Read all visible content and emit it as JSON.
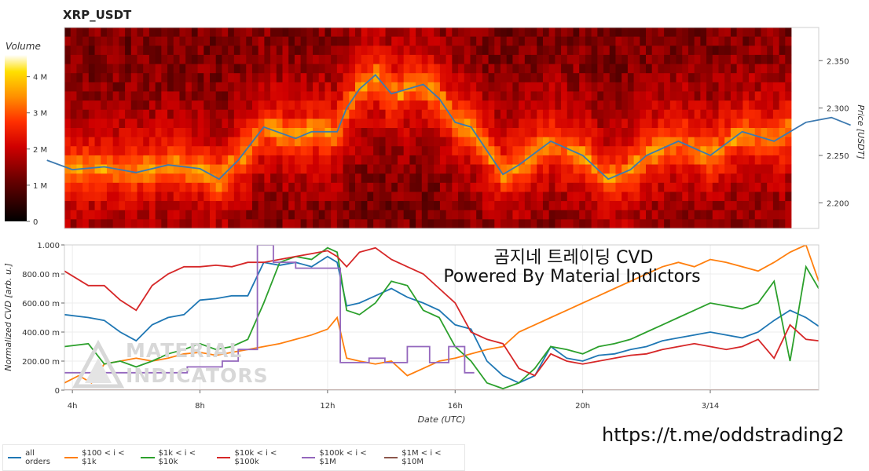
{
  "title": "XRP_USDT",
  "colorbar": {
    "title": "Volume",
    "ticks": [
      "0",
      "1 M",
      "2 M",
      "3 M",
      "4 M"
    ],
    "tick_values": [
      0,
      1,
      2,
      3,
      4
    ],
    "max": 4.6
  },
  "watermark": {
    "line1": "곰지네 트레이딩 CVD",
    "line2": "Powered By Material Indictors",
    "logo_line1": "MATERIAL",
    "logo_line2": "INDICATORS"
  },
  "link": "https://t.me/oddstrading2",
  "colors": {
    "price_line": "#3d7ab0",
    "all_orders": "#1f77b4",
    "s100_1k": "#ff7f0e",
    "s1k_10k": "#2ca02c",
    "s10k_100k": "#d62728",
    "s100k_1m": "#9467bd",
    "s1m_10m": "#8c564b"
  },
  "chart_data": [
    {
      "type": "heatmap",
      "title": "XRP_USDT",
      "ylabel": "Price [USDT]",
      "yticks": [
        "2.200",
        "2.250",
        "2.300",
        "2.350"
      ],
      "ytick_values": [
        2.2,
        2.25,
        2.3,
        2.35
      ],
      "ylim": [
        2.173,
        2.385
      ],
      "zlabel": "Volume",
      "price_series": {
        "name": "Price",
        "x": [
          3.2,
          4.0,
          5.0,
          6.0,
          7.0,
          8.0,
          8.6,
          9.2,
          10.0,
          11.0,
          11.5,
          12.3,
          12.6,
          13.0,
          13.5,
          14.0,
          14.5,
          15.0,
          15.5,
          16.0,
          16.5,
          17.0,
          17.5,
          18.0,
          19.0,
          20.0,
          20.8,
          21.5,
          22.0,
          23.0,
          24.0,
          25.0,
          26.0,
          26.5,
          27.0,
          27.8,
          28.4
        ],
        "y": [
          2.245,
          2.235,
          2.238,
          2.232,
          2.24,
          2.236,
          2.225,
          2.245,
          2.28,
          2.268,
          2.275,
          2.275,
          2.3,
          2.32,
          2.335,
          2.315,
          2.32,
          2.325,
          2.31,
          2.285,
          2.28,
          2.255,
          2.23,
          2.24,
          2.265,
          2.25,
          2.225,
          2.235,
          2.25,
          2.265,
          2.25,
          2.275,
          2.265,
          2.275,
          2.285,
          2.29,
          2.282
        ]
      }
    },
    {
      "type": "line",
      "xlabel": "Date (UTC)",
      "ylabel": "Normalized CVD [arb. u.]",
      "xticks": [
        "4h",
        "8h",
        "12h",
        "16h",
        "20h",
        "3/14"
      ],
      "xtick_values": [
        4,
        8,
        12,
        16,
        20,
        24
      ],
      "xlim": [
        3.75,
        27.4
      ],
      "yticks": [
        "0",
        "200.00 m",
        "400.00 m",
        "600.00 m",
        "800.00 m",
        "1.000"
      ],
      "ytick_values": [
        0,
        0.2,
        0.4,
        0.6,
        0.8,
        1.0
      ],
      "ylim": [
        0,
        1.0
      ],
      "series": [
        {
          "name": "all orders",
          "x": [
            3.75,
            4.5,
            5.0,
            5.5,
            6.0,
            6.5,
            7.0,
            7.5,
            8.0,
            8.5,
            9.0,
            9.5,
            10.0,
            10.5,
            11.0,
            11.5,
            12.0,
            12.3,
            12.6,
            13.0,
            13.5,
            14.0,
            14.5,
            15.0,
            15.5,
            16.0,
            16.5,
            17.0,
            17.5,
            18.0,
            18.5,
            19.0,
            19.5,
            20.0,
            20.5,
            21.0,
            21.5,
            22.0,
            22.5,
            23.0,
            23.5,
            24.0,
            24.5,
            25.0,
            25.5,
            26.0,
            26.5,
            27.0,
            27.4
          ],
          "y": [
            0.52,
            0.5,
            0.48,
            0.4,
            0.34,
            0.45,
            0.5,
            0.52,
            0.62,
            0.63,
            0.65,
            0.65,
            0.88,
            0.86,
            0.88,
            0.85,
            0.92,
            0.88,
            0.58,
            0.6,
            0.65,
            0.7,
            0.64,
            0.6,
            0.55,
            0.45,
            0.42,
            0.2,
            0.1,
            0.05,
            0.1,
            0.3,
            0.22,
            0.2,
            0.24,
            0.25,
            0.28,
            0.3,
            0.34,
            0.36,
            0.38,
            0.4,
            0.38,
            0.36,
            0.4,
            0.48,
            0.55,
            0.5,
            0.44
          ]
        },
        {
          "name": "$100 < i < $1k",
          "x": [
            3.75,
            4.2,
            4.6,
            5.0,
            5.5,
            6.0,
            6.5,
            7.0,
            7.5,
            8.0,
            8.5,
            9.0,
            9.5,
            10.0,
            10.5,
            11.0,
            11.5,
            12.0,
            12.3,
            12.6,
            13.0,
            13.5,
            14.0,
            14.5,
            15.0,
            15.5,
            16.0,
            16.5,
            17.0,
            17.5,
            18.0,
            18.5,
            19.0,
            19.5,
            20.0,
            20.5,
            21.0,
            21.5,
            22.0,
            22.5,
            23.0,
            23.5,
            24.0,
            24.5,
            25.0,
            25.5,
            26.0,
            26.5,
            27.0,
            27.4
          ],
          "y": [
            0.05,
            0.1,
            0.05,
            0.18,
            0.2,
            0.22,
            0.2,
            0.22,
            0.25,
            0.26,
            0.24,
            0.26,
            0.28,
            0.3,
            0.32,
            0.35,
            0.38,
            0.42,
            0.5,
            0.22,
            0.2,
            0.18,
            0.2,
            0.1,
            0.15,
            0.2,
            0.22,
            0.25,
            0.28,
            0.3,
            0.4,
            0.45,
            0.5,
            0.55,
            0.6,
            0.65,
            0.7,
            0.75,
            0.8,
            0.85,
            0.88,
            0.85,
            0.9,
            0.88,
            0.85,
            0.82,
            0.88,
            0.95,
            1.0,
            0.75
          ]
        },
        {
          "name": "$1k < i < $10k",
          "x": [
            3.75,
            4.5,
            5.0,
            5.5,
            6.0,
            6.5,
            7.0,
            7.5,
            8.0,
            8.5,
            9.0,
            9.5,
            10.0,
            10.5,
            11.0,
            11.5,
            12.0,
            12.3,
            12.6,
            13.0,
            13.5,
            14.0,
            14.5,
            15.0,
            15.5,
            16.0,
            16.5,
            17.0,
            17.5,
            18.0,
            18.5,
            19.0,
            19.5,
            20.0,
            20.5,
            21.0,
            21.5,
            22.0,
            22.5,
            23.0,
            23.5,
            24.0,
            24.5,
            25.0,
            25.5,
            26.0,
            26.5,
            27.0,
            27.4
          ],
          "y": [
            0.3,
            0.32,
            0.18,
            0.2,
            0.16,
            0.2,
            0.25,
            0.28,
            0.32,
            0.28,
            0.3,
            0.35,
            0.6,
            0.88,
            0.92,
            0.9,
            0.98,
            0.95,
            0.55,
            0.52,
            0.6,
            0.75,
            0.72,
            0.55,
            0.5,
            0.3,
            0.2,
            0.05,
            0.01,
            0.05,
            0.15,
            0.3,
            0.28,
            0.25,
            0.3,
            0.32,
            0.35,
            0.4,
            0.45,
            0.5,
            0.55,
            0.6,
            0.58,
            0.56,
            0.6,
            0.75,
            0.2,
            0.85,
            0.7
          ]
        },
        {
          "name": "$10k < i < $100k",
          "x": [
            3.75,
            4.5,
            5.0,
            5.5,
            6.0,
            6.5,
            7.0,
            7.5,
            8.0,
            8.5,
            9.0,
            9.5,
            10.0,
            10.5,
            11.0,
            11.5,
            12.0,
            12.3,
            12.6,
            13.0,
            13.5,
            14.0,
            14.5,
            15.0,
            15.5,
            16.0,
            16.5,
            17.0,
            17.5,
            18.0,
            18.5,
            19.0,
            19.5,
            20.0,
            20.5,
            21.0,
            21.5,
            22.0,
            22.5,
            23.0,
            23.5,
            24.0,
            24.5,
            25.0,
            25.5,
            26.0,
            26.5,
            27.0,
            27.4
          ],
          "y": [
            0.82,
            0.72,
            0.72,
            0.62,
            0.55,
            0.72,
            0.8,
            0.85,
            0.85,
            0.86,
            0.85,
            0.88,
            0.88,
            0.9,
            0.92,
            0.94,
            0.96,
            0.92,
            0.85,
            0.95,
            0.98,
            0.9,
            0.85,
            0.8,
            0.7,
            0.6,
            0.4,
            0.35,
            0.32,
            0.15,
            0.1,
            0.25,
            0.2,
            0.18,
            0.2,
            0.22,
            0.24,
            0.25,
            0.28,
            0.3,
            0.32,
            0.3,
            0.28,
            0.3,
            0.35,
            0.22,
            0.45,
            0.35,
            0.34
          ]
        },
        {
          "name": "$100k < i < $1M",
          "x": [
            3.75,
            7.6,
            7.6,
            8.7,
            8.7,
            9.2,
            9.2,
            9.8,
            9.8,
            10.3,
            10.3,
            11.0,
            11.0,
            12.4,
            12.4,
            13.3,
            13.3,
            13.8,
            13.8,
            14.5,
            14.5,
            15.2,
            15.2,
            15.8,
            15.8,
            16.3,
            16.3,
            16.6
          ],
          "y": [
            0.12,
            0.12,
            0.16,
            0.16,
            0.2,
            0.2,
            0.28,
            0.28,
            1.0,
            1.0,
            0.88,
            0.88,
            0.84,
            0.84,
            0.19,
            0.19,
            0.22,
            0.22,
            0.19,
            0.19,
            0.3,
            0.3,
            0.19,
            0.19,
            0.3,
            0.3,
            0.12,
            0.12
          ]
        },
        {
          "name": "$1M < i < $10M",
          "x": [
            3.75,
            16.6,
            17.5,
            27.4
          ],
          "y": [
            0.0,
            0.0,
            0.0,
            0.0
          ]
        }
      ],
      "legend": "bottom"
    }
  ]
}
